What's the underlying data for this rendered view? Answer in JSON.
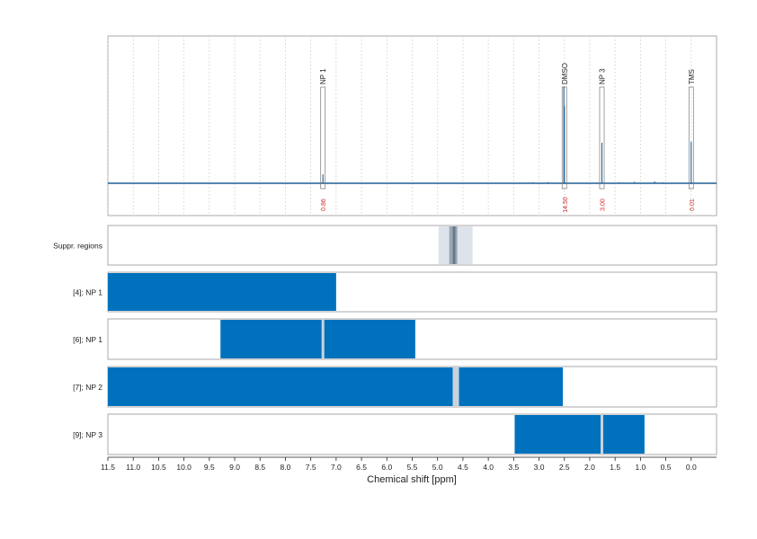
{
  "chart_data": {
    "type": "line",
    "xlabel": "Chemical shift [ppm]",
    "xlim": [
      11.5,
      -0.5
    ],
    "x_ticks": [
      "11.5",
      "11.0",
      "10.5",
      "10.0",
      "9.5",
      "9.0",
      "8.5",
      "8.0",
      "7.5",
      "7.0",
      "6.5",
      "6.0",
      "5.5",
      "5.0",
      "4.5",
      "4.0",
      "3.5",
      "3.0",
      "2.5",
      "2.0",
      "1.5",
      "1.0",
      "0.5",
      "0.0"
    ],
    "grid": true,
    "colors": {
      "spectrum": "#1f5f96",
      "bar": "#0072bd",
      "gap": "#c8d3dd",
      "integral": "#d62728",
      "frame": "#aaaaaa"
    },
    "spectrum": {
      "baseline": 0.0,
      "peaks": [
        {
          "x": 7.26,
          "y": 0.09
        },
        {
          "x": 2.51,
          "y": 0.98
        },
        {
          "x": 2.5,
          "y": 0.78
        },
        {
          "x": 1.76,
          "y": 0.41
        },
        {
          "x": 0.0,
          "y": 0.42
        }
      ]
    },
    "peak_labels": [
      {
        "label": "NP 1",
        "x": 7.26,
        "integral": "0.86"
      },
      {
        "label": "DMSO",
        "x": 2.5,
        "integral": "14.50"
      },
      {
        "label": "NP 3",
        "x": 1.76,
        "integral": "3.00"
      },
      {
        "label": "TMS",
        "x": 0.0,
        "integral": "0.01"
      }
    ],
    "rows": [
      {
        "label": "Suppr. regions",
        "kind": "suppression",
        "outer": [
          4.98,
          4.31
        ],
        "inner": [
          4.77,
          4.61
        ],
        "core": [
          4.7,
          4.65
        ]
      },
      {
        "label": "[4]; NP 1",
        "kind": "range",
        "from": 11.5,
        "to": 7.0,
        "gaps": []
      },
      {
        "label": "[6]; NP 1",
        "kind": "range",
        "from": 9.28,
        "to": 5.44,
        "gaps": [
          7.26
        ]
      },
      {
        "label": "[7]; NP 2",
        "kind": "range",
        "from": 11.5,
        "to": 2.53,
        "gaps": [
          4.64
        ]
      },
      {
        "label": "[9]; NP 3",
        "kind": "range",
        "from": 3.48,
        "to": 0.92,
        "gaps": [
          1.76
        ]
      }
    ]
  }
}
